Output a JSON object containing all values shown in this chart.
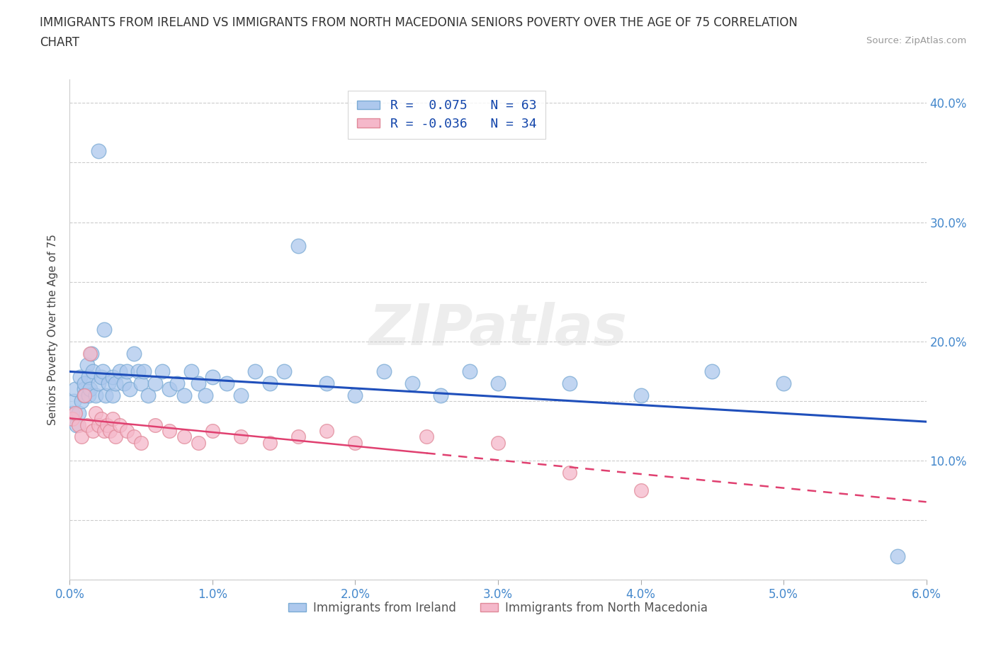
{
  "title_line1": "IMMIGRANTS FROM IRELAND VS IMMIGRANTS FROM NORTH MACEDONIA SENIORS POVERTY OVER THE AGE OF 75 CORRELATION",
  "title_line2": "CHART",
  "source": "Source: ZipAtlas.com",
  "ylabel": "Seniors Poverty Over the Age of 75",
  "xlim": [
    0.0,
    0.06
  ],
  "ylim": [
    0.0,
    0.42
  ],
  "xticks": [
    0.0,
    0.01,
    0.02,
    0.03,
    0.04,
    0.05,
    0.06
  ],
  "xticklabels": [
    "0.0%",
    "1.0%",
    "2.0%",
    "3.0%",
    "4.0%",
    "5.0%",
    "6.0%"
  ],
  "yticks": [
    0.0,
    0.05,
    0.1,
    0.15,
    0.2,
    0.25,
    0.3,
    0.35,
    0.4
  ],
  "yticklabels_right": [
    "",
    "",
    "10.0%",
    "",
    "20.0%",
    "",
    "30.0%",
    "",
    "40.0%"
  ],
  "ireland_color": "#adc8ed",
  "ireland_edge": "#7aaad4",
  "macedonia_color": "#f5b8ca",
  "macedonia_edge": "#e08898",
  "ireland_line_color": "#1f4fbb",
  "macedonia_line_color": "#e04070",
  "R_ireland": 0.075,
  "N_ireland": 63,
  "R_macedonia": -0.036,
  "N_macedonia": 34,
  "legend_label_ireland": "Immigrants from Ireland",
  "legend_label_macedonia": "Immigrants from North Macedonia",
  "ireland_x": [
    0.0002,
    0.0003,
    0.0004,
    0.0005,
    0.0006,
    0.0007,
    0.0008,
    0.001,
    0.001,
    0.001,
    0.0012,
    0.0013,
    0.0013,
    0.0014,
    0.0015,
    0.0016,
    0.0018,
    0.002,
    0.002,
    0.0022,
    0.0023,
    0.0024,
    0.0025,
    0.0027,
    0.003,
    0.003,
    0.0032,
    0.0035,
    0.0038,
    0.004,
    0.0042,
    0.0045,
    0.0048,
    0.005,
    0.0052,
    0.0055,
    0.006,
    0.0065,
    0.007,
    0.0075,
    0.008,
    0.0085,
    0.009,
    0.0095,
    0.01,
    0.011,
    0.012,
    0.013,
    0.014,
    0.015,
    0.016,
    0.018,
    0.02,
    0.022,
    0.024,
    0.026,
    0.028,
    0.03,
    0.035,
    0.04,
    0.045,
    0.05,
    0.058
  ],
  "ireland_y": [
    0.14,
    0.15,
    0.16,
    0.13,
    0.14,
    0.17,
    0.15,
    0.16,
    0.165,
    0.155,
    0.18,
    0.17,
    0.155,
    0.16,
    0.19,
    0.175,
    0.155,
    0.36,
    0.165,
    0.17,
    0.175,
    0.21,
    0.155,
    0.165,
    0.17,
    0.155,
    0.165,
    0.175,
    0.165,
    0.175,
    0.16,
    0.19,
    0.175,
    0.165,
    0.175,
    0.155,
    0.165,
    0.175,
    0.16,
    0.165,
    0.155,
    0.175,
    0.165,
    0.155,
    0.17,
    0.165,
    0.155,
    0.175,
    0.165,
    0.175,
    0.28,
    0.165,
    0.155,
    0.175,
    0.165,
    0.155,
    0.175,
    0.165,
    0.165,
    0.155,
    0.175,
    0.165,
    0.02
  ],
  "macedonia_x": [
    0.0002,
    0.0004,
    0.0006,
    0.0008,
    0.001,
    0.0012,
    0.0014,
    0.0016,
    0.0018,
    0.002,
    0.0022,
    0.0024,
    0.0026,
    0.0028,
    0.003,
    0.0032,
    0.0035,
    0.004,
    0.0045,
    0.005,
    0.006,
    0.007,
    0.008,
    0.009,
    0.01,
    0.012,
    0.014,
    0.016,
    0.018,
    0.02,
    0.025,
    0.03,
    0.035,
    0.04
  ],
  "macedonia_y": [
    0.135,
    0.14,
    0.13,
    0.12,
    0.155,
    0.13,
    0.19,
    0.125,
    0.14,
    0.13,
    0.135,
    0.125,
    0.13,
    0.125,
    0.135,
    0.12,
    0.13,
    0.125,
    0.12,
    0.115,
    0.13,
    0.125,
    0.12,
    0.115,
    0.125,
    0.12,
    0.115,
    0.12,
    0.125,
    0.115,
    0.12,
    0.115,
    0.09,
    0.075
  ]
}
